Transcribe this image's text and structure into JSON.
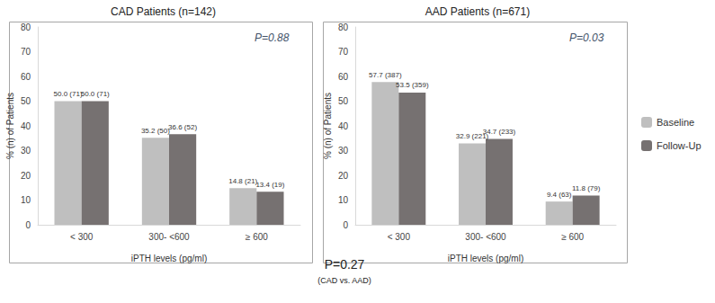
{
  "chart_data": [
    {
      "type": "bar",
      "title": "CAD Patients (n=142)",
      "xlabel": "iPTH levels (pg/ml)",
      "ylabel": "% (n) of Patients",
      "categories": [
        "< 300",
        "300- <600",
        "≥ 600"
      ],
      "series": [
        {
          "name": "Baseline",
          "color": "#bfbfbf",
          "values": [
            50.0,
            35.2,
            14.8
          ],
          "value_labels": [
            "50.0 (71)",
            "35.2 (50)",
            "14.8 (21)"
          ]
        },
        {
          "name": "Follow-Up",
          "color": "#767171",
          "values": [
            50.0,
            36.6,
            13.4
          ],
          "value_labels": [
            "50.0 (71)",
            "36.6 (52)",
            "13.4 (19)"
          ]
        }
      ],
      "ylim": [
        0,
        80
      ],
      "yticks": [
        0,
        10,
        20,
        30,
        40,
        50,
        60,
        70,
        80
      ],
      "grid": false,
      "data_labels": true,
      "annotations": [
        {
          "text": "P=0.88"
        }
      ]
    },
    {
      "type": "bar",
      "title": "AAD Patients (n=671)",
      "xlabel": "iPTH levels (pg/ml)",
      "ylabel": "% (n) of Patients",
      "categories": [
        "< 300",
        "300- <600",
        "≥ 600"
      ],
      "series": [
        {
          "name": "Baseline",
          "color": "#bfbfbf",
          "values": [
            57.7,
            32.9,
            9.4
          ],
          "value_labels": [
            "57.7 (387)",
            "32.9 (221)",
            "9.4 (63)"
          ]
        },
        {
          "name": "Follow-Up",
          "color": "#767171",
          "values": [
            53.5,
            34.7,
            11.8
          ],
          "value_labels": [
            "53.5 (359)",
            "34.7 (233)",
            "11.8 (79)"
          ]
        }
      ],
      "ylim": [
        0,
        80
      ],
      "yticks": [
        0,
        10,
        20,
        30,
        40,
        50,
        60,
        70,
        80
      ],
      "grid": false,
      "data_labels": true,
      "legend": "right",
      "annotations": [
        {
          "text": "P=0.03"
        }
      ]
    }
  ],
  "annotations": [
    {
      "text": "P=0.27"
    },
    {
      "text": "(CAD vs. AAD)"
    }
  ]
}
